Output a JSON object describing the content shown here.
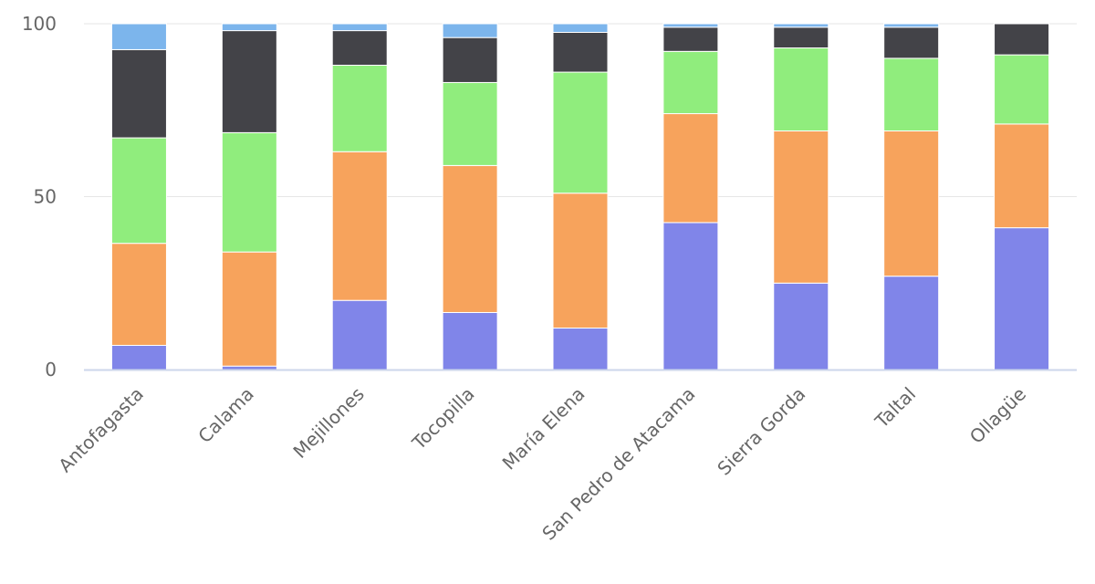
{
  "chart_data": {
    "type": "bar",
    "stacked": true,
    "categories": [
      "Antofagasta",
      "Calama",
      "Mejillones",
      "Tocopilla",
      "María Elena",
      "San Pedro de Atacama",
      "Sierra Gorda",
      "Taltal",
      "Ollagüe"
    ],
    "series": [
      {
        "color": "#8085e9",
        "values": [
          7,
          1,
          20,
          16.5,
          12,
          42.5,
          25,
          27,
          41
        ]
      },
      {
        "color": "#f7a35c",
        "values": [
          29.5,
          33,
          43,
          42.5,
          39,
          31.5,
          44,
          42,
          30
        ]
      },
      {
        "color": "#90ed7d",
        "values": [
          30.5,
          34.5,
          25,
          24,
          35,
          18,
          24,
          21,
          20
        ]
      },
      {
        "color": "#434348",
        "values": [
          25.5,
          29.5,
          10,
          13,
          11.5,
          7,
          6,
          9,
          9
        ]
      },
      {
        "color": "#7cb5ec",
        "values": [
          7.5,
          2,
          2,
          4,
          2.5,
          1,
          1,
          1,
          0
        ]
      }
    ],
    "ylim": [
      0,
      100
    ],
    "yticks": [
      "0",
      "50",
      "100"
    ],
    "grid": true,
    "legend": "none"
  }
}
